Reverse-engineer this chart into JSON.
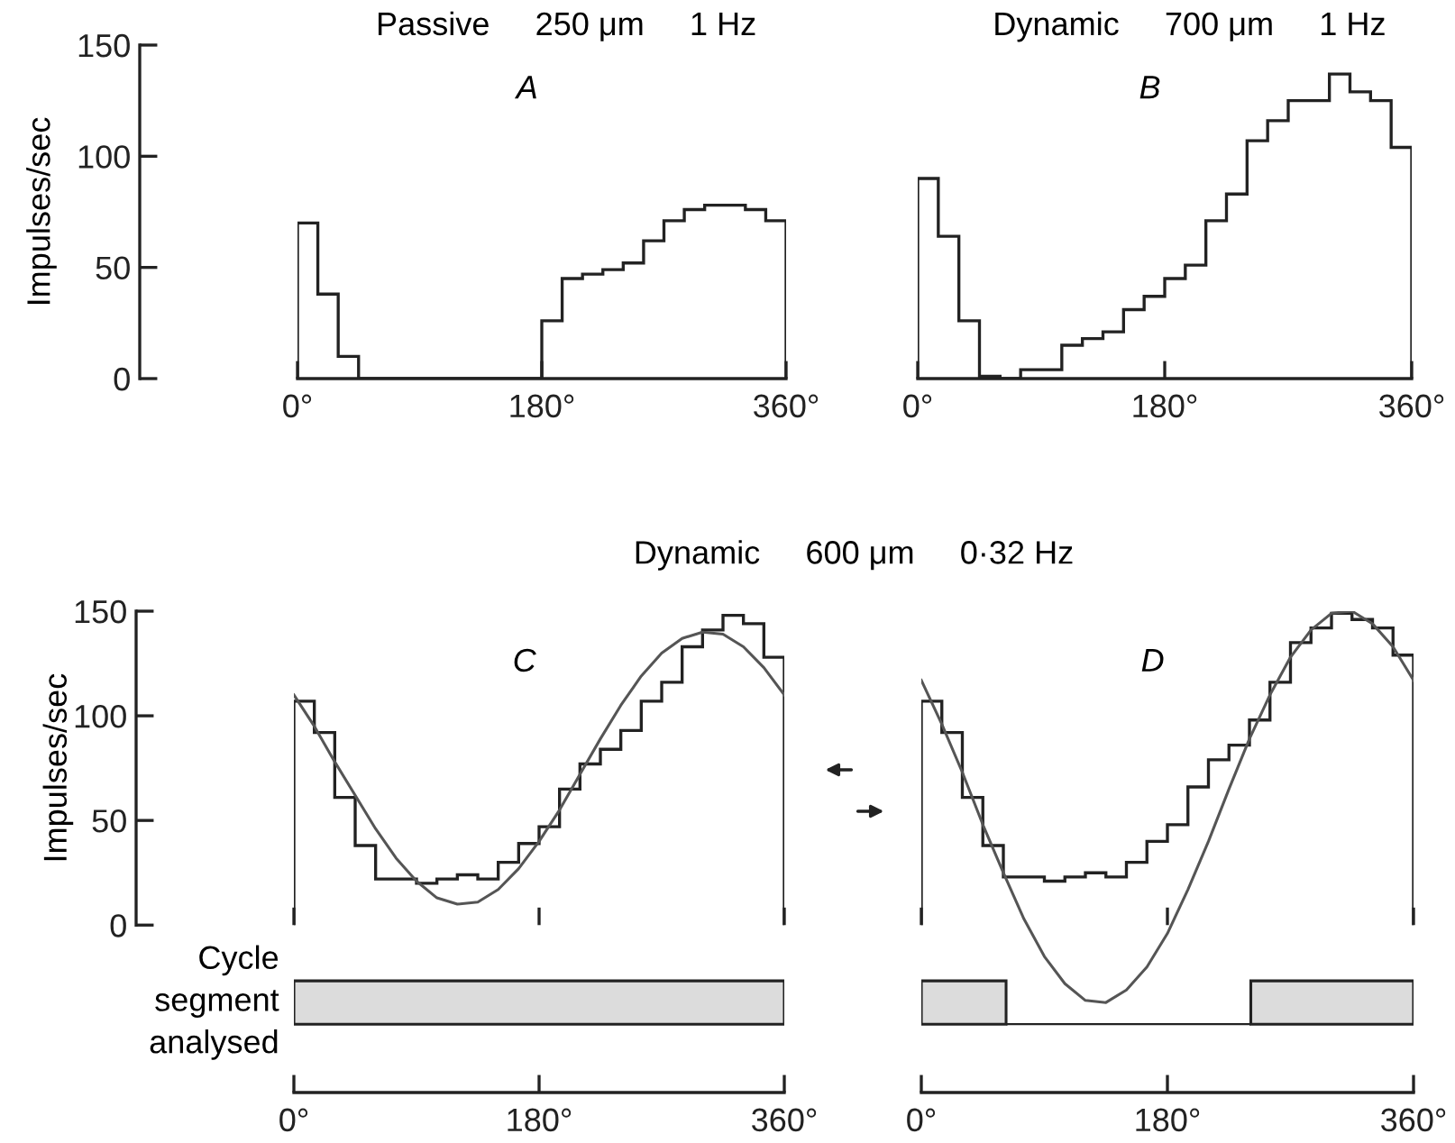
{
  "chart_data": [
    {
      "type": "histogram",
      "title": "Passive     250 μm     1 Hz",
      "ylabel": "Impulses/sec",
      "annotations": [
        "A"
      ],
      "color": "#222222",
      "bins": [
        0,
        15,
        30,
        45,
        60,
        75,
        90,
        105,
        120,
        135,
        150,
        165,
        180,
        195,
        210,
        225,
        240,
        255,
        270,
        285,
        300,
        315,
        330,
        345,
        360
      ],
      "values": [
        70,
        38,
        10,
        0,
        0,
        0,
        0,
        0,
        0,
        0,
        0,
        0,
        26,
        45,
        47,
        49,
        52,
        62,
        71,
        76,
        78,
        78,
        76,
        71
      ],
      "xlim": [
        0,
        360
      ],
      "xticks": [
        {
          "value": 0,
          "label": "0°"
        },
        {
          "value": 180,
          "label": "180°"
        },
        {
          "value": 360,
          "label": "360°"
        }
      ],
      "ylim": [
        0,
        150
      ],
      "yticks": [
        0,
        50,
        100,
        150
      ]
    },
    {
      "type": "histogram",
      "title": "Dynamic     700 μm     1 Hz",
      "annotations": [
        "B"
      ],
      "color": "#222222",
      "bins": [
        0,
        15,
        30,
        45,
        60,
        75,
        90,
        105,
        120,
        135,
        150,
        165,
        180,
        195,
        210,
        225,
        240,
        255,
        270,
        285,
        300,
        315,
        330,
        345,
        360
      ],
      "values": [
        90,
        64,
        26,
        1,
        0,
        4,
        4,
        15,
        18,
        21,
        31,
        37,
        45,
        51,
        71,
        83,
        107,
        116,
        125,
        125,
        137,
        129,
        125,
        104
      ],
      "xlim": [
        0,
        360
      ],
      "xticks": [
        {
          "value": 0,
          "label": "0°"
        },
        {
          "value": 180,
          "label": "180°"
        },
        {
          "value": 360,
          "label": "360°"
        }
      ],
      "ylim": [
        0,
        150
      ],
      "tick_labels": "x"
    },
    {
      "type": "histogram",
      "title": "Dynamic     600 μm     0·32 Hz",
      "ylabel": "Impulses/sec",
      "annotations": [
        "C"
      ],
      "color": "#222222",
      "bins": [
        0,
        15,
        30,
        45,
        60,
        75,
        90,
        105,
        120,
        135,
        150,
        165,
        180,
        195,
        210,
        225,
        240,
        255,
        270,
        285,
        300,
        315,
        330,
        345,
        360
      ],
      "values": [
        107,
        92,
        61,
        38,
        22,
        22,
        20,
        22,
        24,
        22,
        30,
        39,
        47,
        65,
        77,
        84,
        93,
        107,
        116,
        133,
        141,
        148,
        144,
        128
      ],
      "series": [
        {
          "type": "line",
          "color": "#555555",
          "x": [
            0,
            15,
            30,
            45,
            60,
            75,
            90,
            105,
            120,
            135,
            150,
            165,
            180,
            195,
            210,
            225,
            240,
            255,
            270,
            285,
            300,
            315,
            330,
            345,
            360
          ],
          "values": [
            110,
            95,
            78,
            62,
            46,
            32,
            21,
            13,
            10,
            11,
            17,
            27,
            40,
            55,
            72,
            89,
            105,
            119,
            130,
            137,
            140,
            139,
            133,
            123,
            110
          ]
        }
      ],
      "bands": [
        {
          "axis": "x",
          "from": 0,
          "to": 360,
          "label": "Cycle\nsegment\nanalysed",
          "color": "#dcdcdc"
        }
      ],
      "xlim": [
        0,
        360
      ],
      "xticks": [
        {
          "value": 0,
          "label": "0°"
        },
        {
          "value": 180,
          "label": "180°"
        },
        {
          "value": 360,
          "label": "360°"
        }
      ],
      "ylim": [
        -80,
        150
      ],
      "yticks": [
        0,
        50,
        100,
        150
      ]
    },
    {
      "type": "histogram",
      "annotations": [
        "D"
      ],
      "color": "#222222",
      "bins": [
        0,
        15,
        30,
        45,
        60,
        75,
        90,
        105,
        120,
        135,
        150,
        165,
        180,
        195,
        210,
        225,
        240,
        255,
        270,
        285,
        300,
        315,
        330,
        345,
        360
      ],
      "values": [
        107,
        92,
        61,
        38,
        23,
        23,
        21,
        23,
        25,
        23,
        30,
        40,
        48,
        66,
        79,
        86,
        98,
        116,
        135,
        142,
        149,
        146,
        142,
        129
      ],
      "series": [
        {
          "type": "line",
          "color": "#555555",
          "x": [
            0,
            15,
            30,
            45,
            60,
            75,
            90,
            105,
            120,
            135,
            150,
            165,
            180,
            195,
            210,
            225,
            240,
            255,
            270,
            285,
            300,
            315,
            330,
            345,
            360
          ],
          "values": [
            117,
            96,
            73,
            48,
            25,
            3,
            -15,
            -28,
            -36,
            -37,
            -31,
            -20,
            -4,
            17,
            40,
            65,
            89,
            110,
            128,
            141,
            149,
            150,
            144,
            133,
            117
          ]
        }
      ],
      "bands": [
        {
          "axis": "x",
          "from": 0,
          "to": 62,
          "color": "#dcdcdc"
        },
        {
          "axis": "x",
          "from": 241,
          "to": 360,
          "color": "#dcdcdc"
        }
      ],
      "xlim": [
        0,
        360
      ],
      "xticks": [
        {
          "value": 0,
          "label": "0°"
        },
        {
          "value": 180,
          "label": "180°"
        },
        {
          "value": 360,
          "label": "360°"
        }
      ],
      "ylim": [
        -80,
        150
      ],
      "tick_labels": "x"
    }
  ]
}
